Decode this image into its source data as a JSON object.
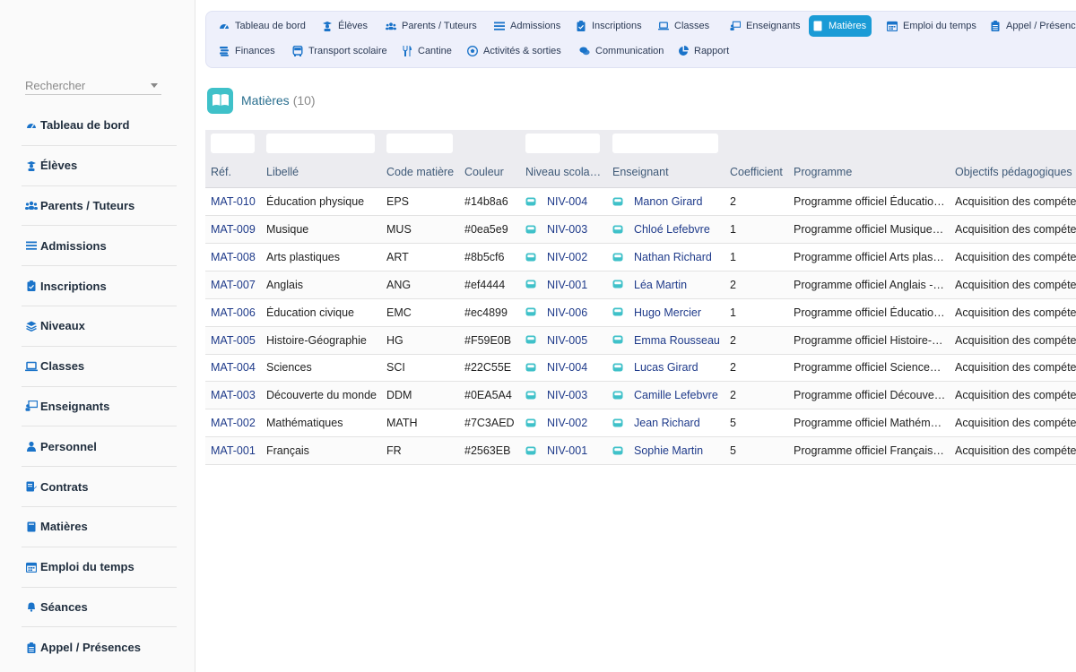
{
  "sidebar": {
    "search_placeholder": "Rechercher",
    "items": [
      {
        "label": "Tableau de bord",
        "icon": "dashboard-icon"
      },
      {
        "label": "Élèves",
        "icon": "student-icon"
      },
      {
        "label": "Parents / Tuteurs",
        "icon": "users-icon"
      },
      {
        "label": "Admissions",
        "icon": "list-icon"
      },
      {
        "label": "Inscriptions",
        "icon": "clipboard-icon"
      },
      {
        "label": "Niveaux",
        "icon": "layers-icon"
      },
      {
        "label": "Classes",
        "icon": "laptop-icon"
      },
      {
        "label": "Enseignants",
        "icon": "teacher-icon"
      },
      {
        "label": "Personnel",
        "icon": "person-icon"
      },
      {
        "label": "Contrats",
        "icon": "contract-icon"
      },
      {
        "label": "Matières",
        "icon": "book-icon"
      },
      {
        "label": "Emploi du temps",
        "icon": "calendar-icon"
      },
      {
        "label": "Séances",
        "icon": "bell-icon"
      },
      {
        "label": "Appel / Présences",
        "icon": "clipboard-check-icon"
      }
    ]
  },
  "topnav": {
    "row1": [
      {
        "label": "Tableau de bord",
        "icon": "dashboard-icon"
      },
      {
        "label": "Élèves",
        "icon": "student-icon"
      },
      {
        "label": "Parents / Tuteurs",
        "icon": "users-icon"
      },
      {
        "label": "Admissions",
        "icon": "list-icon"
      },
      {
        "label": "Inscriptions",
        "icon": "clipboard-icon"
      },
      {
        "label": "Classes",
        "icon": "laptop-icon"
      },
      {
        "label": "Enseignants",
        "icon": "teacher-icon"
      },
      {
        "label": "Matières",
        "icon": "book-icon",
        "active": true
      },
      {
        "label": "Emploi du temps",
        "icon": "calendar-icon"
      },
      {
        "label": "Appel / Présence",
        "icon": "clipboard-check-icon"
      }
    ],
    "row2": [
      {
        "label": "Finances",
        "icon": "coins-icon"
      },
      {
        "label": "Transport scolaire",
        "icon": "bus-icon"
      },
      {
        "label": "Cantine",
        "icon": "cutlery-icon"
      },
      {
        "label": "Activités & sorties",
        "icon": "ball-icon"
      },
      {
        "label": "Communication",
        "icon": "chat-icon"
      },
      {
        "label": "Rapport",
        "icon": "pie-chart-icon"
      }
    ]
  },
  "page": {
    "title": "Matières",
    "count": "(10)"
  },
  "table": {
    "columns": [
      "Réf.",
      "Libellé",
      "Code matière",
      "Couleur",
      "Niveau scola…",
      "Enseignant",
      "Coefficient",
      "Programme",
      "Objectifs pédagogiques"
    ],
    "rows": [
      {
        "ref": "MAT-010",
        "libelle": "Éducation physique",
        "code": "EPS",
        "couleur": "#14b8a6",
        "niveau": "NIV-004",
        "enseignant": "Manon Girard",
        "coef": "2",
        "programme": "Programme officiel Éducatio…",
        "objectifs": "Acquisition des compéter"
      },
      {
        "ref": "MAT-009",
        "libelle": "Musique",
        "code": "MUS",
        "couleur": "#0ea5e9",
        "niveau": "NIV-003",
        "enseignant": "Chloé Lefebvre",
        "coef": "1",
        "programme": "Programme officiel Musique…",
        "objectifs": "Acquisition des compéter"
      },
      {
        "ref": "MAT-008",
        "libelle": "Arts plastiques",
        "code": "ART",
        "couleur": "#8b5cf6",
        "niveau": "NIV-002",
        "enseignant": "Nathan Richard",
        "coef": "1",
        "programme": "Programme officiel Arts plas…",
        "objectifs": "Acquisition des compéter"
      },
      {
        "ref": "MAT-007",
        "libelle": "Anglais",
        "code": "ANG",
        "couleur": "#ef4444",
        "niveau": "NIV-001",
        "enseignant": "Léa Martin",
        "coef": "2",
        "programme": "Programme officiel Anglais -…",
        "objectifs": "Acquisition des compéter"
      },
      {
        "ref": "MAT-006",
        "libelle": "Éducation civique",
        "code": "EMC",
        "couleur": "#ec4899",
        "niveau": "NIV-006",
        "enseignant": "Hugo Mercier",
        "coef": "1",
        "programme": "Programme officiel Éducatio…",
        "objectifs": "Acquisition des compéter"
      },
      {
        "ref": "MAT-005",
        "libelle": "Histoire-Géographie",
        "code": "HG",
        "couleur": "#F59E0B",
        "niveau": "NIV-005",
        "enseignant": "Emma Rousseau",
        "coef": "2",
        "programme": "Programme officiel Histoire-…",
        "objectifs": "Acquisition des compéter"
      },
      {
        "ref": "MAT-004",
        "libelle": "Sciences",
        "code": "SCI",
        "couleur": "#22C55E",
        "niveau": "NIV-004",
        "enseignant": "Lucas Girard",
        "coef": "2",
        "programme": "Programme officiel Science…",
        "objectifs": "Acquisition des compéter"
      },
      {
        "ref": "MAT-003",
        "libelle": "Découverte du monde",
        "code": "DDM",
        "couleur": "#0EA5A4",
        "niveau": "NIV-003",
        "enseignant": "Camille Lefebvre",
        "coef": "2",
        "programme": "Programme officiel Découve…",
        "objectifs": "Acquisition des compéter"
      },
      {
        "ref": "MAT-002",
        "libelle": "Mathématiques",
        "code": "MATH",
        "couleur": "#7C3AED",
        "niveau": "NIV-002",
        "enseignant": "Jean Richard",
        "coef": "5",
        "programme": "Programme officiel Mathém…",
        "objectifs": "Acquisition des compéter"
      },
      {
        "ref": "MAT-001",
        "libelle": "Français",
        "code": "FR",
        "couleur": "#2563EB",
        "niveau": "NIV-001",
        "enseignant": "Sophie Martin",
        "coef": "5",
        "programme": "Programme officiel Français…",
        "objectifs": "Acquisition des compéter"
      }
    ]
  },
  "colors": {
    "accent": "#1a9bd6",
    "chip": "#3fc1c9",
    "link": "#1e3a8a"
  }
}
